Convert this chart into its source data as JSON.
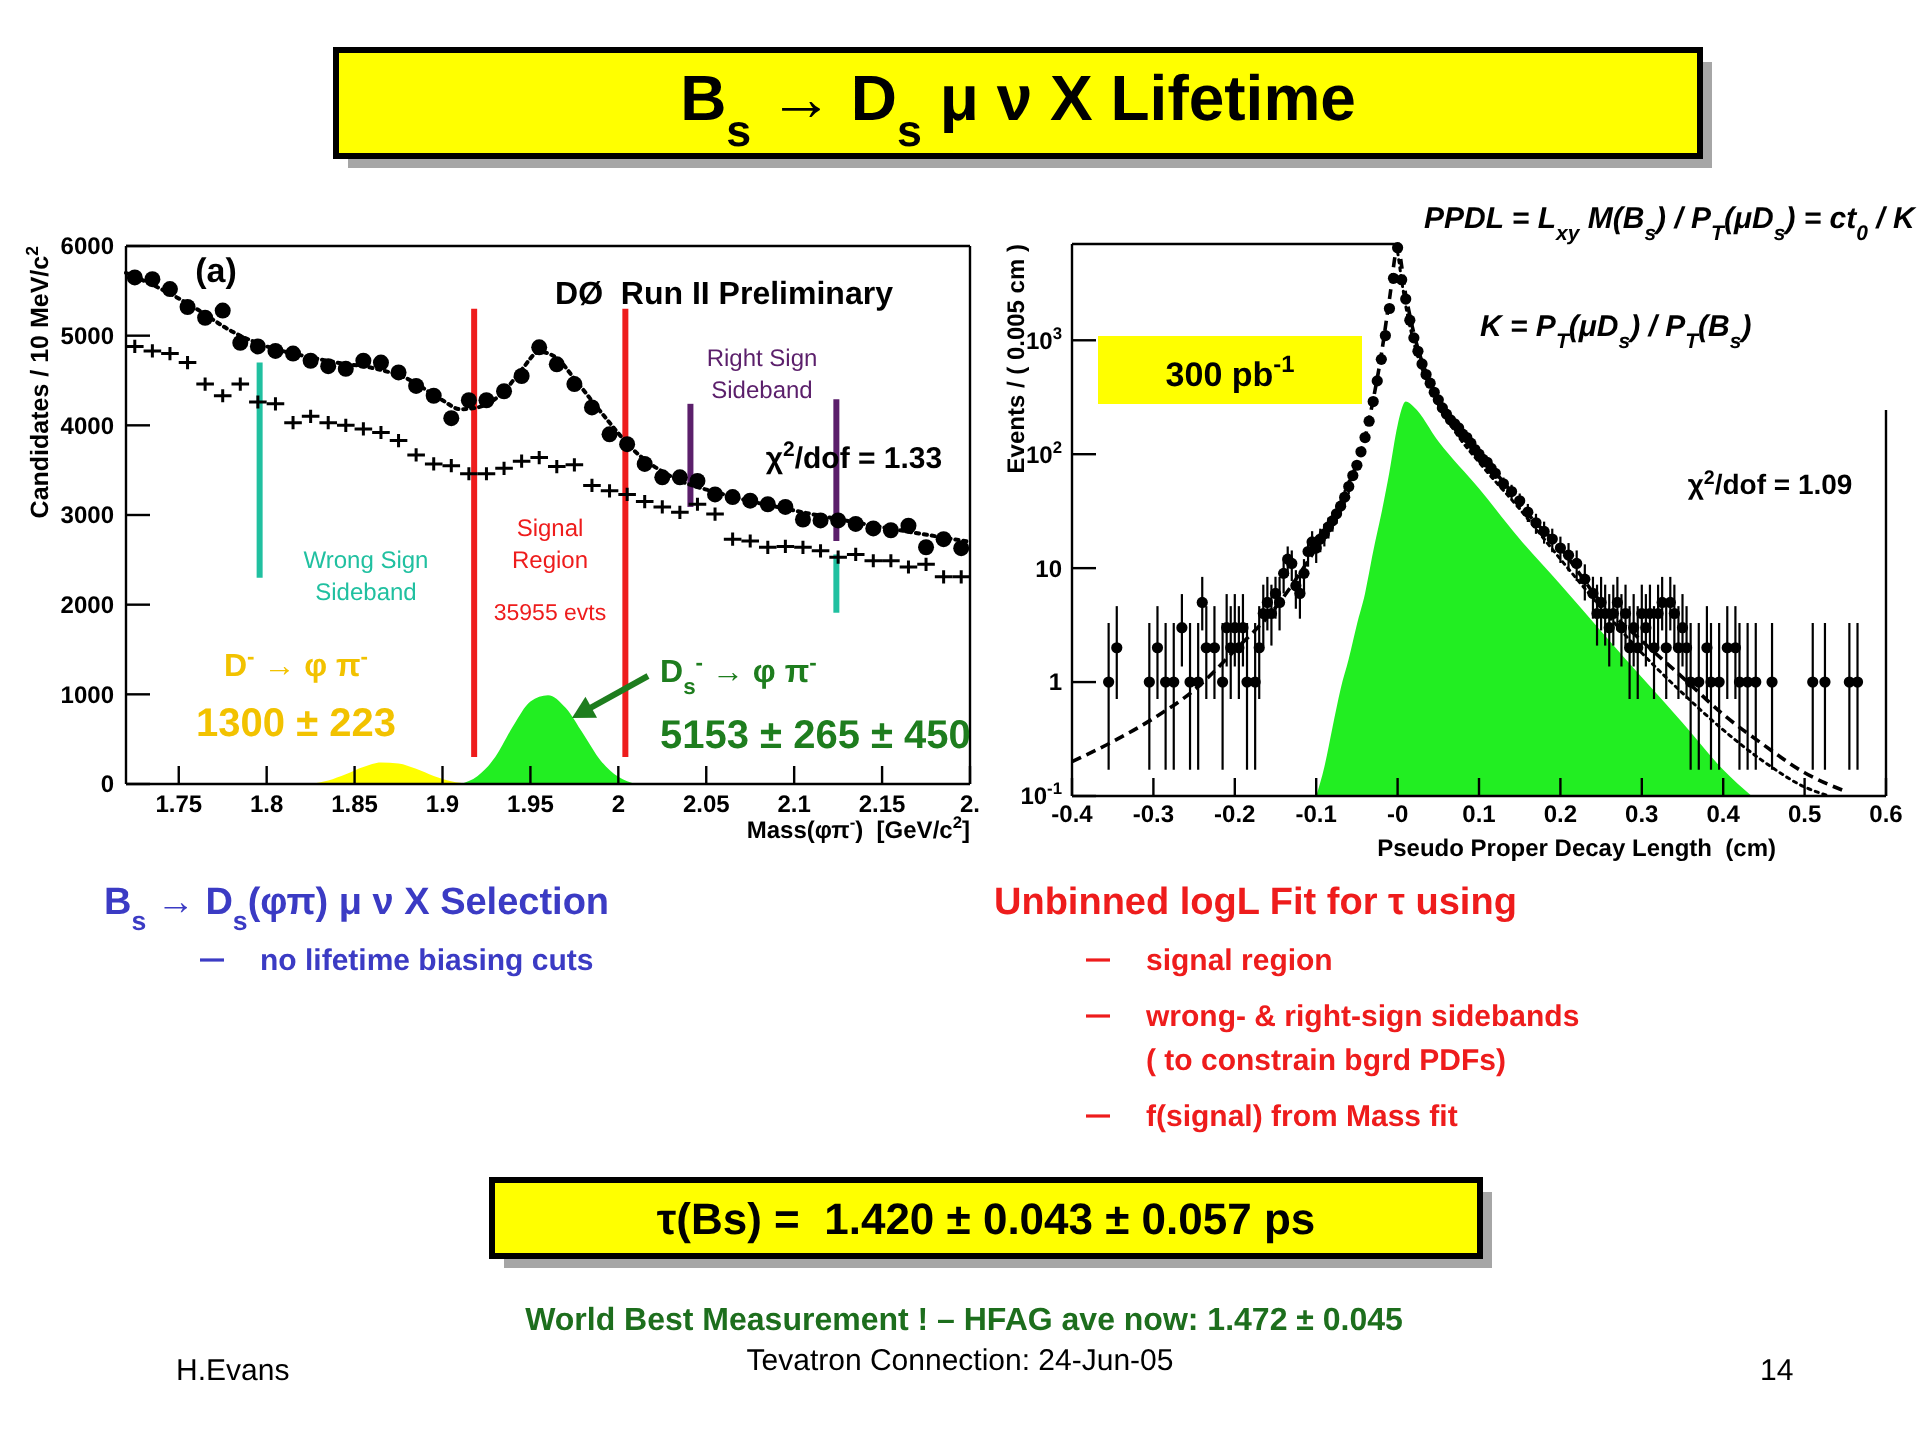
{
  "chart_data": [
    {
      "type": "other",
      "title": "B$_{s}$ → D$_{s}$ μ ν X Lifetime"
    },
    {
      "type": "scatter",
      "xlabel": "Mass(φπ$^{-}$)  [GeV/c$^{2}$]",
      "ylabel": "Candidates / 10 MeV/c$^{2}$",
      "xlim": [
        1.72,
        2.2
      ],
      "ylim": [
        0,
        6000
      ],
      "xticks": [
        1.75,
        1.8,
        1.85,
        1.9,
        1.95,
        2,
        2.05,
        2.1,
        2.15,
        {
          "value": 2.2,
          "label": "2."
        }
      ],
      "yticks": [
        0,
        1000,
        2000,
        3000,
        4000,
        5000,
        6000
      ],
      "x": [
        1.725,
        1.735,
        1.745,
        1.755,
        1.765,
        1.775,
        1.785,
        1.795,
        1.805,
        1.815,
        1.825,
        1.835,
        1.845,
        1.855,
        1.865,
        1.875,
        1.885,
        1.895,
        1.905,
        1.915,
        1.925,
        1.935,
        1.945,
        1.955,
        1.965,
        1.975,
        1.985,
        1.995,
        2.005,
        2.015,
        2.025,
        2.035,
        2.045,
        2.055,
        2.065,
        2.075,
        2.085,
        2.095,
        2.105,
        2.115,
        2.125,
        2.135,
        2.145,
        2.155,
        2.165,
        2.175,
        2.185,
        2.195
      ],
      "annotations": [
        "(a)",
        "DØ  Run II Preliminary",
        "χ$^{2}$/dof = 1.33"
      ],
      "series": [
        {
          "type": "area",
          "name": "D$^{-}$ → φ π$^{-}$\n1300 ± 223",
          "color": "#ffff00",
          "x": [
            1.825,
            1.835,
            1.845,
            1.855,
            1.865,
            1.875,
            1.885,
            1.895,
            1.905,
            1.915
          ],
          "values": [
            0,
            40,
            110,
            190,
            240,
            230,
            170,
            90,
            30,
            0
          ]
        },
        {
          "type": "area",
          "name": "D$_{s}$$^{-}$ → φ π$^{-}$\n5153 ± 265 ± 450",
          "color": "#22ee22",
          "x": [
            1.91,
            1.92,
            1.93,
            1.94,
            1.95,
            1.96,
            1.97,
            1.98,
            1.99,
            2.0,
            2.01
          ],
          "values": [
            0,
            90,
            300,
            640,
            920,
            990,
            850,
            560,
            260,
            80,
            0
          ]
        },
        {
          "type": "line",
          "name": "Wrong Sign\nSideband",
          "color": "#20c0a0",
          "x": [
            1.796,
            1.796
          ],
          "values": [
            2300,
            4700
          ]
        },
        {
          "type": "line",
          "color": "#20c0a0",
          "x": [
            2.124,
            2.124
          ],
          "values": [
            1910,
            2560
          ]
        },
        {
          "type": "line",
          "name": "Signal\nRegion\n35955 evts",
          "color": "#ee1c1c",
          "x": [
            1.918,
            1.918
          ],
          "values": [
            300,
            5300
          ]
        },
        {
          "type": "line",
          "color": "#ee1c1c",
          "x": [
            2.004,
            2.004
          ],
          "values": [
            300,
            5300
          ]
        },
        {
          "type": "line",
          "name": "Right Sign\nSideband",
          "color": "#5b1f6b",
          "x": [
            2.041,
            2.041
          ],
          "values": [
            3090,
            4240
          ]
        },
        {
          "type": "line",
          "color": "#5b1f6b",
          "x": [
            2.124,
            2.124
          ],
          "values": [
            2710,
            4290
          ]
        },
        {
          "type": "line",
          "color": "#000000",
          "line_style": "dotted",
          "x": [
            1.72,
            1.74,
            1.76,
            1.78,
            1.8,
            1.82,
            1.84,
            1.86,
            1.88,
            1.9,
            1.91,
            1.92,
            1.935,
            1.945,
            1.955,
            1.965,
            1.975,
            1.99,
            2.01,
            2.03,
            2.06,
            2.1,
            2.14,
            2.2
          ],
          "values": [
            5700,
            5520,
            5300,
            5050,
            4880,
            4780,
            4700,
            4640,
            4520,
            4280,
            4180,
            4200,
            4380,
            4620,
            4820,
            4750,
            4520,
            4150,
            3700,
            3430,
            3230,
            3050,
            2900,
            2700
          ]
        },
        {
          "type": "scatter",
          "color": "#000000",
          "marker": "cross",
          "values": [
            4880,
            4830,
            4800,
            4700,
            4460,
            4330,
            4460,
            4260,
            4240,
            4030,
            4100,
            4030,
            4000,
            3960,
            3920,
            3830,
            3670,
            3570,
            3550,
            3460,
            3460,
            3520,
            3600,
            3640,
            3540,
            3560,
            3330,
            3270,
            3230,
            3150,
            3090,
            3030,
            3120,
            3010,
            2730,
            2710,
            2640,
            2650,
            2640,
            2600,
            2530,
            2560,
            2490,
            2490,
            2420,
            2450,
            2310,
            2310
          ]
        },
        {
          "type": "scatter",
          "color": "#000000",
          "marker": "circle",
          "values": [
            5650,
            5630,
            5520,
            5320,
            5200,
            5280,
            4920,
            4880,
            4830,
            4800,
            4720,
            4660,
            4630,
            4720,
            4700,
            4590,
            4440,
            4330,
            4080,
            4280,
            4280,
            4380,
            4550,
            4870,
            4680,
            4460,
            4200,
            3900,
            3790,
            3570,
            3420,
            3420,
            3380,
            3230,
            3200,
            3160,
            3120,
            3090,
            2950,
            2940,
            2940,
            2900,
            2850,
            2830,
            2880,
            2640,
            2730,
            2630
          ]
        }
      ]
    },
    {
      "type": "scatter",
      "log": true,
      "xlabel": "Pseudo Proper Decay Length  (cm)",
      "ylabel": "Events / ( 0.005 cm )",
      "xlim": [
        -0.4,
        0.6
      ],
      "ylim": [
        0.1,
        7000
      ],
      "xticks": [
        -0.4,
        -0.3,
        -0.2,
        -0.1,
        {
          "value": 0,
          "label": "-0"
        },
        0.1,
        0.2,
        0.3,
        0.4,
        0.5,
        0.6
      ],
      "yticks": [
        {
          "value": 0.1,
          "label": "10$^{-1}$"
        },
        1,
        10,
        {
          "value": 100,
          "label": "10$^{2}$"
        },
        {
          "value": 1000,
          "label": "10$^{3}$"
        }
      ],
      "annotations": [
        "300 pb$^{-1}$",
        "χ$^{2}$/dof = 1.09",
        "PPDL = L$_{xy}$ M(B$_{s}$) / P$_{T}$(μD$_{s}$) = ct$_{0}$ / K",
        "K = P$_{T}$(μD$_{s}$) / P$_{T}$(B$_{s}$)"
      ],
      "series": [
        {
          "type": "area",
          "color": "#22ee22",
          "x": [
            -0.1,
            -0.09,
            -0.08,
            -0.07,
            -0.06,
            -0.05,
            -0.04,
            -0.03,
            -0.02,
            -0.01,
            0,
            0.01,
            0.02,
            0.05,
            0.1,
            0.15,
            0.2,
            0.25,
            0.3,
            0.35,
            0.4,
            0.435
          ],
          "values": [
            0.1,
            0.18,
            0.4,
            0.87,
            1.6,
            3.2,
            6,
            14,
            30,
            70,
            180,
            290,
            260,
            130,
            50,
            18,
            7.2,
            2.8,
            1.1,
            0.44,
            0.17,
            0.1
          ]
        },
        {
          "type": "line",
          "color": "#000000",
          "line_style": "dotted",
          "x": [
            0,
            0.01,
            0.02,
            0.04,
            0.07,
            0.1,
            0.15,
            0.2,
            0.25,
            0.3,
            0.35,
            0.4,
            0.45,
            0.5,
            0.53
          ],
          "values": [
            6000,
            2000,
            950,
            380,
            160,
            85,
            33,
            12,
            4.5,
            1.8,
            0.8,
            0.38,
            0.2,
            0.12,
            0.1
          ]
        },
        {
          "type": "line",
          "color": "#000000",
          "line_style": "dashed",
          "x": [
            -0.4,
            -0.35,
            -0.3,
            -0.25,
            -0.2,
            -0.15,
            -0.12,
            -0.1,
            -0.08,
            -0.06,
            -0.04,
            -0.03,
            -0.02,
            -0.01,
            0,
            0.01,
            0.02,
            0.03,
            0.04,
            0.06,
            0.08,
            0.1,
            0.13,
            0.16,
            0.2,
            0.25,
            0.3,
            0.35,
            0.4,
            0.45,
            0.5,
            0.55
          ],
          "values": [
            0.2,
            0.3,
            0.48,
            0.85,
            1.9,
            4.5,
            9,
            15,
            26,
            55,
            140,
            300,
            750,
            2300,
            6500,
            2500,
            1150,
            650,
            430,
            240,
            150,
            100,
            57,
            30,
            15,
            5,
            2.3,
            1.1,
            0.52,
            0.28,
            0.16,
            0.11
          ]
        },
        {
          "type": "scatter",
          "color": "#000000",
          "marker": "circle",
          "x": [
            -0.355,
            -0.345,
            -0.305,
            -0.295,
            -0.285,
            -0.275,
            -0.265,
            -0.255,
            -0.245,
            -0.24,
            -0.235,
            -0.225,
            -0.215,
            -0.21,
            -0.205,
            -0.2,
            -0.195,
            -0.19,
            -0.185,
            -0.175,
            -0.17,
            -0.165,
            -0.16,
            -0.155,
            -0.15,
            -0.145,
            -0.14,
            -0.135,
            -0.13,
            -0.125,
            -0.12,
            -0.115,
            -0.11,
            -0.105,
            -0.1,
            -0.095,
            -0.09,
            -0.085,
            -0.08,
            -0.075,
            -0.07,
            -0.065,
            -0.06,
            -0.055,
            -0.05,
            -0.045,
            -0.04,
            -0.035,
            -0.03,
            -0.025,
            -0.02,
            -0.015,
            -0.01,
            -0.005,
            0,
            0.005,
            0.01,
            0.015,
            0.02,
            0.025,
            0.03,
            0.035,
            0.04,
            0.045,
            0.05,
            0.055,
            0.06,
            0.065,
            0.07,
            0.075,
            0.08,
            0.085,
            0.09,
            0.095,
            0.1,
            0.105,
            0.11,
            0.115,
            0.12,
            0.13,
            0.14,
            0.15,
            0.16,
            0.17,
            0.18,
            0.19,
            0.2,
            0.21,
            0.22,
            0.23,
            0.24,
            0.245,
            0.25,
            0.255,
            0.26,
            0.265,
            0.27,
            0.275,
            0.28,
            0.285,
            0.29,
            0.295,
            0.3,
            0.305,
            0.31,
            0.315,
            0.32,
            0.325,
            0.33,
            0.335,
            0.34,
            0.345,
            0.35,
            0.355,
            0.36,
            0.37,
            0.38,
            0.385,
            0.395,
            0.405,
            0.415,
            0.42,
            0.43,
            0.44,
            0.46,
            0.51,
            0.525,
            0.555,
            0.565
          ],
          "values": [
            1,
            2,
            1,
            2,
            1,
            1,
            3,
            1,
            1,
            5,
            2,
            2,
            1,
            3,
            2,
            3,
            2,
            3,
            1,
            1,
            2,
            4,
            5,
            4,
            6,
            5,
            9,
            12,
            11,
            7,
            6,
            9,
            14,
            17,
            15,
            18,
            20,
            23,
            26,
            30,
            35,
            42,
            52,
            65,
            80,
            105,
            140,
            195,
            290,
            440,
            680,
            1100,
            1900,
            3500,
            6500,
            3400,
            2300,
            1500,
            1050,
            800,
            620,
            500,
            420,
            350,
            300,
            255,
            225,
            200,
            185,
            170,
            150,
            140,
            125,
            110,
            100,
            90,
            85,
            75,
            68,
            55,
            47,
            39,
            31,
            25,
            21,
            18,
            15,
            13,
            11,
            8,
            6,
            4,
            5,
            4,
            3,
            4,
            5,
            3,
            4,
            2,
            3,
            2,
            4,
            3,
            4,
            2,
            4,
            5,
            2,
            5,
            4,
            2,
            3,
            2,
            1,
            1,
            2,
            1,
            1,
            2,
            2,
            1,
            1,
            1,
            1,
            1,
            1,
            1,
            1
          ],
          "errors": [
            [
              0.17,
              3.3
            ],
            [
              0.71,
              4.64
            ],
            [
              0.17,
              3.3
            ],
            [
              0.71,
              4.64
            ],
            [
              0.17,
              3.3
            ],
            [
              0.17,
              3.3
            ],
            [
              1.37,
              5.92
            ],
            [
              0.17,
              3.3
            ],
            [
              0.17,
              3.3
            ],
            [
              2.84,
              8.38
            ],
            [
              0.71,
              4.64
            ],
            [
              0.71,
              4.64
            ],
            [
              0.17,
              3.3
            ],
            [
              1.37,
              5.92
            ],
            [
              0.71,
              4.64
            ],
            [
              1.37,
              5.92
            ],
            [
              0.71,
              4.64
            ],
            [
              1.37,
              5.92
            ],
            [
              0.17,
              3.3
            ],
            [
              0.17,
              3.3
            ],
            [
              0.71,
              4.64
            ],
            [
              2.09,
              7.16
            ],
            [
              2.84,
              8.38
            ],
            [
              2.09,
              7.16
            ],
            2.4,
            [
              2.84,
              8.38
            ],
            3,
            3.5,
            3.3,
            2.6,
            2.4,
            3,
            3.7,
            4.1,
            3.9,
            4.2,
            4.5,
            4.8,
            5.1,
            5.5,
            5.9,
            6.5,
            7.2,
            null,
            null,
            null,
            null,
            null,
            null,
            null,
            null,
            null,
            null,
            null,
            null,
            null,
            null,
            null,
            null,
            null,
            null,
            null,
            null,
            null,
            null,
            null,
            null,
            null,
            null,
            null,
            null,
            null,
            null,
            null,
            null,
            null,
            null,
            null,
            null,
            7.4,
            6.9,
            6.2,
            5.6,
            5,
            4.6,
            4.2,
            3.9,
            3.6,
            3.3,
            2.8,
            2.4,
            [
              2.09,
              7.16
            ],
            [
              2.84,
              8.38
            ],
            [
              2.09,
              7.16
            ],
            [
              1.37,
              5.92
            ],
            [
              2.09,
              7.16
            ],
            [
              2.84,
              8.38
            ],
            [
              1.37,
              5.92
            ],
            [
              2.09,
              7.16
            ],
            [
              0.71,
              4.64
            ],
            [
              1.37,
              5.92
            ],
            [
              0.71,
              4.64
            ],
            [
              2.09,
              7.16
            ],
            [
              1.37,
              5.92
            ],
            [
              2.09,
              7.16
            ],
            [
              0.71,
              4.64
            ],
            [
              2.09,
              7.16
            ],
            [
              2.84,
              8.38
            ],
            [
              0.71,
              4.64
            ],
            [
              2.84,
              8.38
            ],
            [
              2.09,
              7.16
            ],
            [
              0.71,
              4.64
            ],
            [
              1.37,
              5.92
            ],
            [
              0.71,
              4.64
            ],
            [
              0.17,
              3.3
            ],
            [
              0.17,
              3.3
            ],
            [
              0.71,
              4.64
            ],
            [
              0.17,
              3.3
            ],
            [
              0.17,
              3.3
            ],
            [
              0.71,
              4.64
            ],
            [
              0.71,
              4.64
            ],
            [
              0.17,
              3.3
            ],
            [
              0.17,
              3.3
            ],
            [
              0.17,
              3.3
            ],
            [
              0.17,
              3.3
            ],
            [
              0.17,
              3.3
            ],
            [
              0.17,
              3.3
            ],
            [
              0.17,
              3.3
            ],
            [
              0.17,
              3.3
            ]
          ]
        }
      ]
    },
    {
      "type": "other",
      "annotations": [
        "B$_{s}$ → D$_{s}$(φπ) μ ν X Selection",
        "no lifetime biasing cuts",
        "Unbinned logL Fit for τ using",
        "signal region",
        "wrong- & right-sign sidebands\n( to constrain bgrd PDFs)",
        "f(signal) from Mass fit",
        "τ(Bs) =  1.420 ± 0.043 ± 0.057 ps",
        "World Best Measurement ! – HFAG ave now: 1.472 ± 0.045",
        "H.Evans",
        "Tevatron Connection: 24-Jun-05",
        "14"
      ]
    }
  ]
}
